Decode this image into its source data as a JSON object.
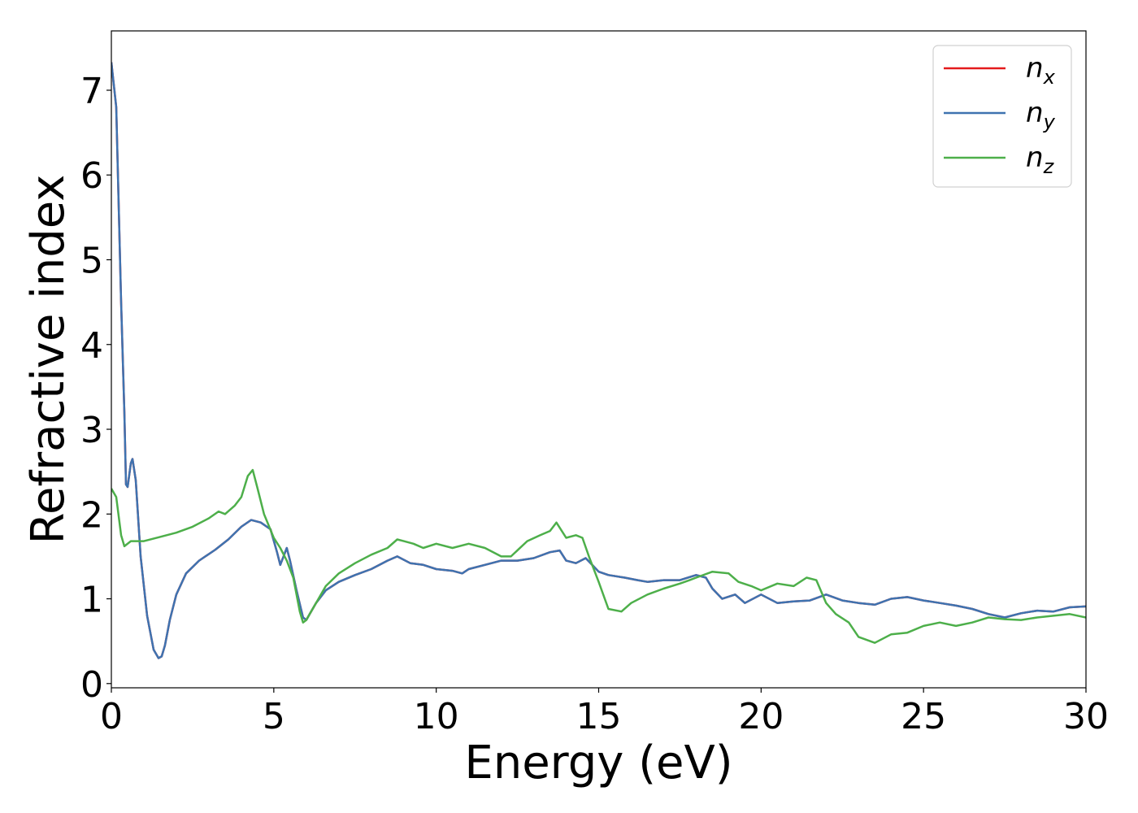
{
  "chart_data": {
    "type": "line",
    "xlabel": "Energy (eV)",
    "ylabel": "Refractive index",
    "xlim": [
      0,
      30
    ],
    "ylim": [
      -0.05,
      7.7
    ],
    "xticks": [
      0,
      5,
      10,
      15,
      20,
      25,
      30
    ],
    "xtick_labels": [
      "0",
      "5",
      "10",
      "15",
      "20",
      "25",
      "30"
    ],
    "yticks": [
      0,
      1,
      2,
      3,
      4,
      5,
      6,
      7
    ],
    "ytick_labels": [
      "0",
      "1",
      "2",
      "3",
      "4",
      "5",
      "6",
      "7"
    ],
    "grid": false,
    "legend_position": "top-right",
    "series": [
      {
        "name": "n_x",
        "label_base": "n",
        "label_sub": "x",
        "color": "#e41a1c",
        "x": [
          0,
          0.15,
          0.3,
          0.4,
          0.45,
          0.5,
          0.6,
          0.65,
          0.75,
          0.9,
          1.1,
          1.3,
          1.45,
          1.55,
          1.65,
          1.8,
          2.0,
          2.3,
          2.7,
          3.2,
          3.6,
          4.0,
          4.3,
          4.6,
          4.9,
          5.1,
          5.2,
          5.3,
          5.4,
          5.5,
          5.7,
          5.9,
          6.0,
          6.3,
          6.6,
          7.0,
          7.5,
          8.0,
          8.5,
          8.8,
          9.2,
          9.6,
          10.0,
          10.5,
          10.8,
          11.0,
          11.5,
          12.0,
          12.5,
          13.0,
          13.5,
          13.8,
          14.0,
          14.3,
          14.6,
          14.8,
          15.0,
          15.3,
          15.8,
          16.2,
          16.5,
          17.0,
          17.5,
          18.0,
          18.3,
          18.5,
          18.8,
          19.2,
          19.5,
          20.0,
          20.5,
          21.0,
          21.5,
          22.0,
          22.5,
          23.0,
          23.5,
          24.0,
          24.5,
          25.0,
          25.5,
          26.0,
          26.5,
          27.0,
          27.5,
          28.0,
          28.5,
          29.0,
          29.5,
          30.0
        ],
        "y": [
          7.33,
          6.8,
          4.5,
          3.2,
          2.35,
          2.32,
          2.6,
          2.65,
          2.4,
          1.5,
          0.8,
          0.4,
          0.3,
          0.32,
          0.45,
          0.75,
          1.05,
          1.3,
          1.45,
          1.58,
          1.7,
          1.85,
          1.93,
          1.9,
          1.82,
          1.55,
          1.4,
          1.5,
          1.6,
          1.45,
          1.1,
          0.78,
          0.75,
          0.95,
          1.1,
          1.2,
          1.28,
          1.35,
          1.45,
          1.5,
          1.42,
          1.4,
          1.35,
          1.33,
          1.3,
          1.35,
          1.4,
          1.45,
          1.45,
          1.48,
          1.55,
          1.57,
          1.45,
          1.42,
          1.48,
          1.4,
          1.32,
          1.28,
          1.25,
          1.22,
          1.2,
          1.22,
          1.22,
          1.28,
          1.25,
          1.12,
          1.0,
          1.05,
          0.95,
          1.05,
          0.95,
          0.97,
          0.98,
          1.05,
          0.98,
          0.95,
          0.93,
          1.0,
          1.02,
          0.98,
          0.95,
          0.92,
          0.88,
          0.82,
          0.78,
          0.83,
          0.86,
          0.85,
          0.9,
          0.91
        ]
      },
      {
        "name": "n_y",
        "label_base": "n",
        "label_sub": "y",
        "color": "#3e73b0",
        "x": [
          0,
          0.15,
          0.3,
          0.4,
          0.45,
          0.5,
          0.6,
          0.65,
          0.75,
          0.9,
          1.1,
          1.3,
          1.45,
          1.55,
          1.65,
          1.8,
          2.0,
          2.3,
          2.7,
          3.2,
          3.6,
          4.0,
          4.3,
          4.6,
          4.9,
          5.1,
          5.2,
          5.3,
          5.4,
          5.5,
          5.7,
          5.9,
          6.0,
          6.3,
          6.6,
          7.0,
          7.5,
          8.0,
          8.5,
          8.8,
          9.2,
          9.6,
          10.0,
          10.5,
          10.8,
          11.0,
          11.5,
          12.0,
          12.5,
          13.0,
          13.5,
          13.8,
          14.0,
          14.3,
          14.6,
          14.8,
          15.0,
          15.3,
          15.8,
          16.2,
          16.5,
          17.0,
          17.5,
          18.0,
          18.3,
          18.5,
          18.8,
          19.2,
          19.5,
          20.0,
          20.5,
          21.0,
          21.5,
          22.0,
          22.5,
          23.0,
          23.5,
          24.0,
          24.5,
          25.0,
          25.5,
          26.0,
          26.5,
          27.0,
          27.5,
          28.0,
          28.5,
          29.0,
          29.5,
          30.0
        ],
        "y": [
          7.33,
          6.8,
          4.5,
          3.2,
          2.35,
          2.32,
          2.6,
          2.65,
          2.4,
          1.5,
          0.8,
          0.4,
          0.3,
          0.32,
          0.45,
          0.75,
          1.05,
          1.3,
          1.45,
          1.58,
          1.7,
          1.85,
          1.93,
          1.9,
          1.82,
          1.55,
          1.4,
          1.5,
          1.6,
          1.45,
          1.1,
          0.78,
          0.75,
          0.95,
          1.1,
          1.2,
          1.28,
          1.35,
          1.45,
          1.5,
          1.42,
          1.4,
          1.35,
          1.33,
          1.3,
          1.35,
          1.4,
          1.45,
          1.45,
          1.48,
          1.55,
          1.57,
          1.45,
          1.42,
          1.48,
          1.4,
          1.32,
          1.28,
          1.25,
          1.22,
          1.2,
          1.22,
          1.22,
          1.28,
          1.25,
          1.12,
          1.0,
          1.05,
          0.95,
          1.05,
          0.95,
          0.97,
          0.98,
          1.05,
          0.98,
          0.95,
          0.93,
          1.0,
          1.02,
          0.98,
          0.95,
          0.92,
          0.88,
          0.82,
          0.78,
          0.83,
          0.86,
          0.85,
          0.9,
          0.91
        ]
      },
      {
        "name": "n_z",
        "label_base": "n",
        "label_sub": "z",
        "color": "#4daf4a",
        "x": [
          0,
          0.15,
          0.3,
          0.4,
          0.5,
          0.6,
          0.8,
          1.0,
          1.5,
          2.0,
          2.5,
          3.0,
          3.3,
          3.5,
          3.8,
          4.0,
          4.2,
          4.35,
          4.5,
          4.7,
          5.0,
          5.2,
          5.4,
          5.6,
          5.8,
          5.9,
          6.0,
          6.3,
          6.6,
          7.0,
          7.5,
          8.0,
          8.5,
          8.8,
          9.0,
          9.3,
          9.6,
          10.0,
          10.5,
          11.0,
          11.5,
          12.0,
          12.3,
          12.8,
          13.2,
          13.5,
          13.7,
          14.0,
          14.3,
          14.5,
          14.7,
          15.0,
          15.3,
          15.7,
          16.0,
          16.5,
          17.0,
          17.5,
          17.8,
          18.0,
          18.5,
          19.0,
          19.3,
          19.7,
          20.0,
          20.5,
          21.0,
          21.4,
          21.7,
          22.0,
          22.3,
          22.7,
          23.0,
          23.5,
          24.0,
          24.5,
          25.0,
          25.5,
          26.0,
          26.5,
          27.0,
          27.5,
          28.0,
          28.5,
          29.0,
          29.5,
          30.0
        ],
        "y": [
          2.3,
          2.2,
          1.75,
          1.62,
          1.65,
          1.68,
          1.68,
          1.68,
          1.73,
          1.78,
          1.85,
          1.95,
          2.03,
          2.0,
          2.1,
          2.2,
          2.45,
          2.52,
          2.3,
          2.0,
          1.72,
          1.6,
          1.45,
          1.25,
          0.85,
          0.72,
          0.75,
          0.95,
          1.15,
          1.3,
          1.42,
          1.52,
          1.6,
          1.7,
          1.68,
          1.65,
          1.6,
          1.65,
          1.6,
          1.65,
          1.6,
          1.5,
          1.5,
          1.68,
          1.75,
          1.8,
          1.9,
          1.72,
          1.75,
          1.72,
          1.5,
          1.2,
          0.88,
          0.85,
          0.95,
          1.05,
          1.12,
          1.18,
          1.22,
          1.25,
          1.32,
          1.3,
          1.2,
          1.15,
          1.1,
          1.18,
          1.15,
          1.25,
          1.22,
          0.95,
          0.82,
          0.72,
          0.55,
          0.48,
          0.58,
          0.6,
          0.68,
          0.72,
          0.68,
          0.72,
          0.78,
          0.76,
          0.75,
          0.78,
          0.8,
          0.82,
          0.78
        ]
      }
    ]
  }
}
